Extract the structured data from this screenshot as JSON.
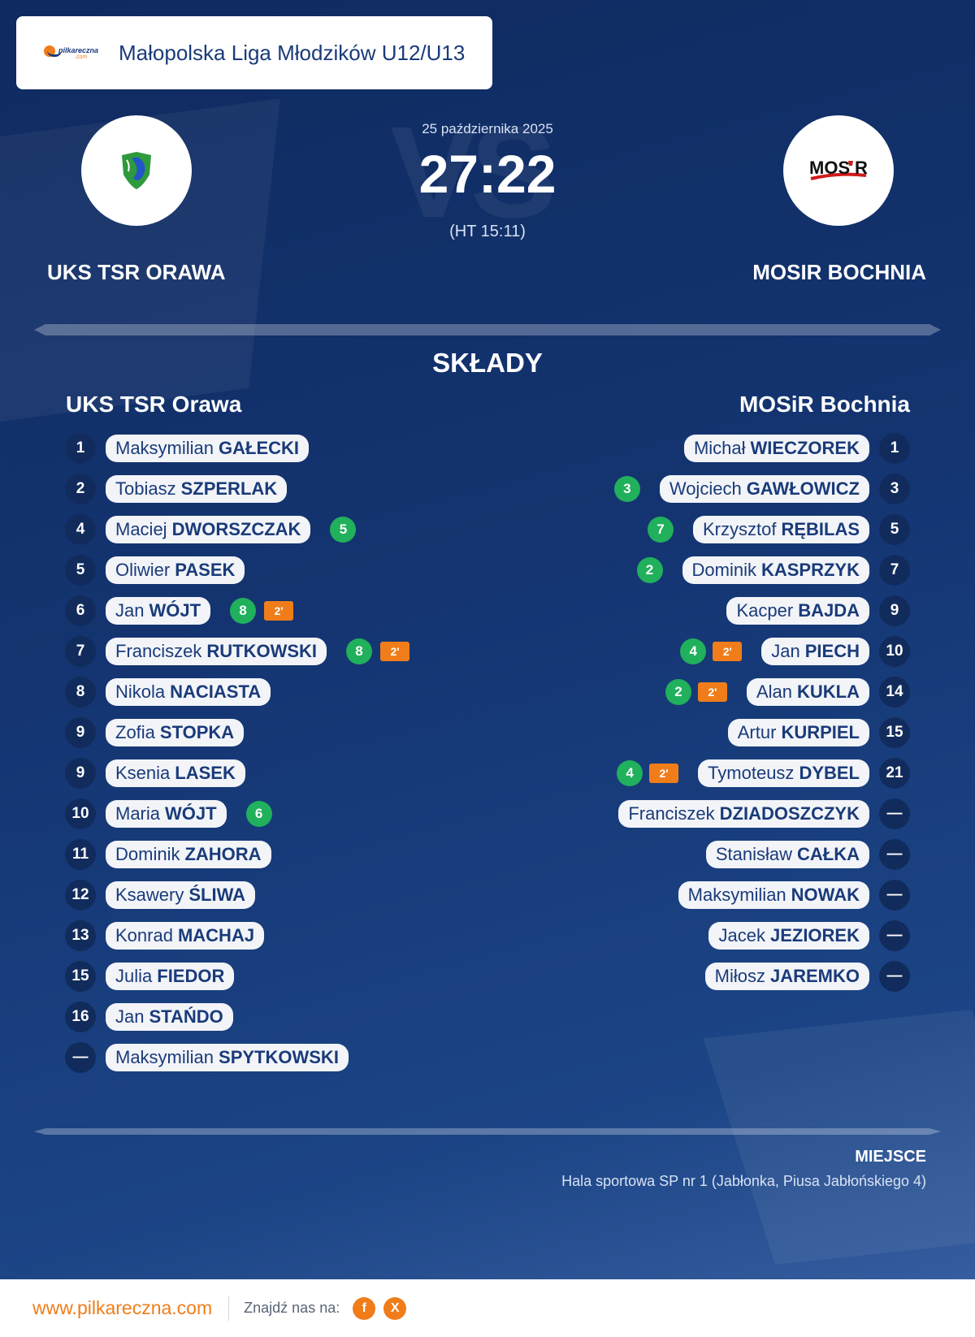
{
  "header": {
    "logo_text": "pilkareczna",
    "logo_subtext": ".com",
    "league": "Małopolska Liga Młodzików U12/U13"
  },
  "match": {
    "date": "25 października 2025",
    "score": "27:22",
    "halftime": "(HT 15:11)",
    "vs": "VS",
    "home_team": "UKS TSR ORAWA",
    "away_team": "MOSIR BOCHNIA",
    "away_logo_text": "MOS",
    "away_logo_text2": "R"
  },
  "squads": {
    "title": "SKŁADY",
    "home_name": "UKS TSR Orawa",
    "away_name": "MOSiR Bochnia",
    "home": [
      {
        "num": "1",
        "first": "Maksymilian",
        "last": "GAŁECKI",
        "goals": "",
        "susp": ""
      },
      {
        "num": "2",
        "first": "Tobiasz",
        "last": "SZPERLAK",
        "goals": "",
        "susp": ""
      },
      {
        "num": "4",
        "first": "Maciej",
        "last": "DWORSZCZAK",
        "goals": "5",
        "susp": ""
      },
      {
        "num": "5",
        "first": "Oliwier",
        "last": "PASEK",
        "goals": "",
        "susp": ""
      },
      {
        "num": "6",
        "first": "Jan",
        "last": "WÓJT",
        "goals": "8",
        "susp": "2'"
      },
      {
        "num": "7",
        "first": "Franciszek",
        "last": "RUTKOWSKI",
        "goals": "8",
        "susp": "2'"
      },
      {
        "num": "8",
        "first": "Nikola",
        "last": "NACIASTA",
        "goals": "",
        "susp": ""
      },
      {
        "num": "9",
        "first": "Zofia",
        "last": "STOPKA",
        "goals": "",
        "susp": ""
      },
      {
        "num": "9",
        "first": "Ksenia",
        "last": "LASEK",
        "goals": "",
        "susp": ""
      },
      {
        "num": "10",
        "first": "Maria",
        "last": "WÓJT",
        "goals": "6",
        "susp": ""
      },
      {
        "num": "11",
        "first": "Dominik",
        "last": "ZAHORA",
        "goals": "",
        "susp": ""
      },
      {
        "num": "12",
        "first": "Ksawery",
        "last": "ŚLIWA",
        "goals": "",
        "susp": ""
      },
      {
        "num": "13",
        "first": "Konrad",
        "last": "MACHAJ",
        "goals": "",
        "susp": ""
      },
      {
        "num": "15",
        "first": "Julia",
        "last": "FIEDOR",
        "goals": "",
        "susp": ""
      },
      {
        "num": "16",
        "first": "Jan",
        "last": "STAŃDO",
        "goals": "",
        "susp": ""
      },
      {
        "num": "—",
        "first": "Maksymilian",
        "last": "SPYTKOWSKI",
        "goals": "",
        "susp": ""
      }
    ],
    "away": [
      {
        "num": "1",
        "first": "Michał",
        "last": "WIECZOREK",
        "goals": "",
        "susp": ""
      },
      {
        "num": "3",
        "first": "Wojciech",
        "last": "GAWŁOWICZ",
        "goals": "3",
        "susp": ""
      },
      {
        "num": "5",
        "first": "Krzysztof",
        "last": "RĘBILAS",
        "goals": "7",
        "susp": ""
      },
      {
        "num": "7",
        "first": "Dominik",
        "last": "KASPRZYK",
        "goals": "2",
        "susp": ""
      },
      {
        "num": "9",
        "first": "Kacper",
        "last": "BAJDA",
        "goals": "",
        "susp": ""
      },
      {
        "num": "10",
        "first": "Jan",
        "last": "PIECH",
        "goals": "4",
        "susp": "2'"
      },
      {
        "num": "14",
        "first": "Alan",
        "last": "KUKLA",
        "goals": "2",
        "susp": "2'"
      },
      {
        "num": "15",
        "first": "Artur",
        "last": "KURPIEL",
        "goals": "",
        "susp": ""
      },
      {
        "num": "21",
        "first": "Tymoteusz",
        "last": "DYBEL",
        "goals": "4",
        "susp": "2'"
      },
      {
        "num": "—",
        "first": "Franciszek",
        "last": "DZIADOSZCZYK",
        "goals": "",
        "susp": ""
      },
      {
        "num": "—",
        "first": "Stanisław",
        "last": "CAŁKA",
        "goals": "",
        "susp": ""
      },
      {
        "num": "—",
        "first": "Maksymilian",
        "last": "NOWAK",
        "goals": "",
        "susp": ""
      },
      {
        "num": "—",
        "first": "Jacek",
        "last": "JEZIOREK",
        "goals": "",
        "susp": ""
      },
      {
        "num": "—",
        "first": "Miłosz",
        "last": "JAREMKO",
        "goals": "",
        "susp": ""
      }
    ]
  },
  "venue": {
    "label": "MIEJSCE",
    "value": "Hala sportowa SP nr 1 (Jabłonka, Piusa Jabłońskiego 4)"
  },
  "footer": {
    "site": "www.pilkareczna.com",
    "find_us": "Znajdź nas na:",
    "social": [
      {
        "icon": "facebook-icon",
        "glyph": "f"
      },
      {
        "icon": "x-icon",
        "glyph": "X"
      }
    ]
  },
  "colors": {
    "accent": "#f07d1a",
    "goal_badge": "#21b05c",
    "navy": "#1a3b7a"
  }
}
